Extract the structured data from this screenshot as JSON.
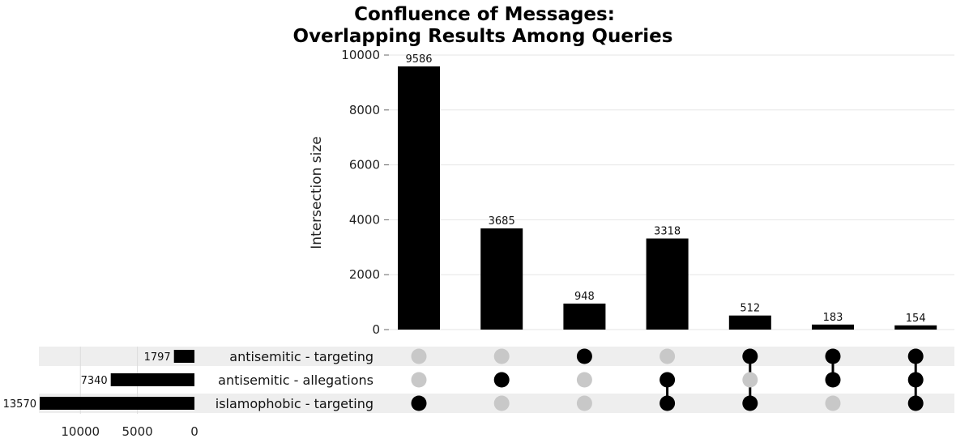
{
  "chart_data": {
    "type": "upset",
    "title_line1": "Confluence of Messages:",
    "title_line2": "Overlapping Results Among Queries",
    "ylabel": "Intersection size",
    "ylim": [
      0,
      10000
    ],
    "yticks": [
      "0",
      "2000",
      "4000",
      "6000",
      "8000",
      "10000"
    ],
    "sets": [
      {
        "name": "antisemitic - targeting",
        "size": 1797,
        "size_label": "1797"
      },
      {
        "name": "antisemitic - allegations",
        "size": 7340,
        "size_label": "7340"
      },
      {
        "name": "islamophobic - targeting",
        "size": 13570,
        "size_label": "13570"
      }
    ],
    "set_size_ticks": [
      "10000",
      "5000",
      "0"
    ],
    "intersections": [
      {
        "value": 9586,
        "label": "9586",
        "members": [
          false,
          false,
          true
        ]
      },
      {
        "value": 3685,
        "label": "3685",
        "members": [
          false,
          true,
          false
        ]
      },
      {
        "value": 948,
        "label": "948",
        "members": [
          true,
          false,
          false
        ]
      },
      {
        "value": 3318,
        "label": "3318",
        "members": [
          false,
          true,
          true
        ]
      },
      {
        "value": 512,
        "label": "512",
        "members": [
          true,
          false,
          true
        ]
      },
      {
        "value": 183,
        "label": "183",
        "members": [
          true,
          true,
          false
        ]
      },
      {
        "value": 154,
        "label": "154",
        "members": [
          true,
          true,
          true
        ]
      }
    ],
    "colors": {
      "bar": "#000000",
      "dot_active": "#000000",
      "dot_inactive": "#c8c8c8",
      "row_shade": "#eeeeee",
      "grid": "#e6e6e6"
    }
  }
}
